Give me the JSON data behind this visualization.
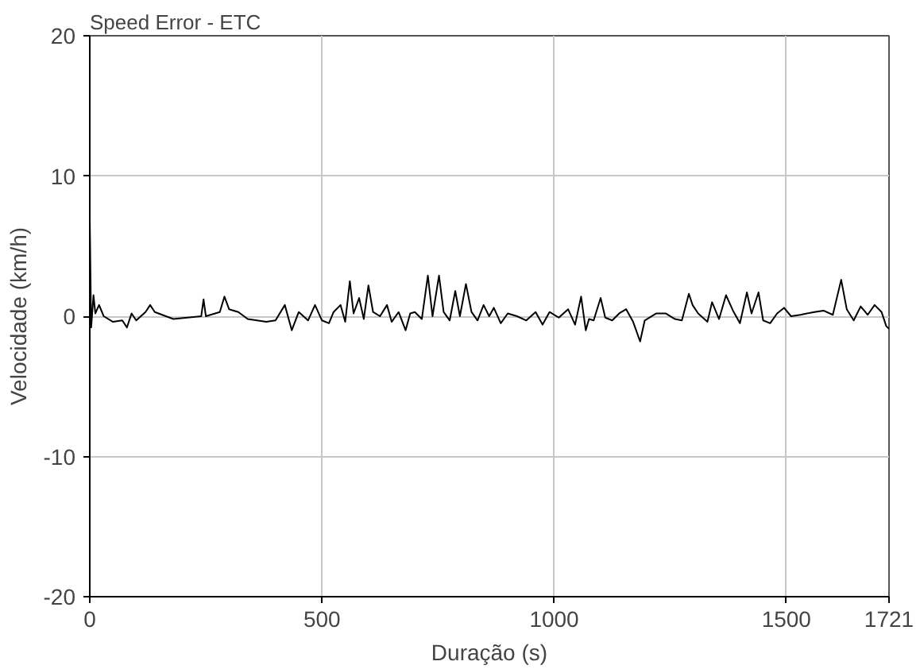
{
  "chart_data": {
    "type": "line",
    "title": "Speed Error - ETC",
    "xlabel": "Duração (s)",
    "ylabel": "Velocidade (km/h)",
    "xlim": [
      0,
      1721
    ],
    "xticks": [
      0,
      500,
      1000,
      1500,
      1721
    ],
    "ylim": [
      -20,
      20
    ],
    "yticks": [
      -20,
      -10,
      0,
      10,
      20
    ],
    "grid": true,
    "series": [
      {
        "color": "#000000",
        "x": [
          0,
          3,
          8,
          12,
          20,
          30,
          50,
          70,
          80,
          90,
          100,
          120,
          130,
          140,
          180,
          240,
          245,
          250,
          280,
          290,
          300,
          320,
          340,
          380,
          400,
          420,
          435,
          450,
          470,
          485,
          500,
          515,
          525,
          540,
          550,
          560,
          568,
          580,
          590,
          600,
          610,
          625,
          640,
          650,
          665,
          680,
          690,
          700,
          715,
          728,
          738,
          752,
          762,
          775,
          787,
          797,
          810,
          822,
          835,
          848,
          860,
          870,
          885,
          900,
          920,
          940,
          960,
          975,
          990,
          1010,
          1030,
          1045,
          1058,
          1068,
          1075,
          1085,
          1100,
          1110,
          1125,
          1140,
          1155,
          1170,
          1185,
          1195,
          1220,
          1240,
          1260,
          1275,
          1290,
          1298,
          1310,
          1330,
          1340,
          1355,
          1370,
          1385,
          1400,
          1415,
          1425,
          1440,
          1450,
          1465,
          1480,
          1495,
          1510,
          1530,
          1560,
          1580,
          1600,
          1618,
          1630,
          1645,
          1660,
          1675,
          1690,
          1705,
          1715,
          1721
        ],
        "values": [
          7,
          -0.8,
          1.5,
          0.2,
          0.8,
          0,
          -0.4,
          -0.3,
          -0.8,
          0.2,
          -0.3,
          0.3,
          0.8,
          0.3,
          -0.2,
          0,
          1.2,
          0,
          0.3,
          1.4,
          0.5,
          0.3,
          -0.2,
          -0.4,
          -0.3,
          0.8,
          -1.0,
          0.3,
          -0.3,
          0.8,
          -0.3,
          -0.5,
          0.3,
          0.8,
          -0.4,
          2.5,
          0.2,
          1.3,
          -0.2,
          2.2,
          0.3,
          0,
          0.8,
          -0.4,
          0.3,
          -1.0,
          0.2,
          0.3,
          -0.2,
          2.9,
          0,
          2.9,
          0.3,
          -0.3,
          1.8,
          0,
          2.3,
          0.3,
          -0.3,
          0.8,
          0.0,
          0.6,
          -0.5,
          0.2,
          0,
          -0.3,
          0.3,
          -0.6,
          0.3,
          -0.1,
          0.5,
          -0.6,
          1.4,
          -1.0,
          -0.2,
          -0.3,
          1.3,
          -0.1,
          -0.3,
          0.2,
          0.5,
          -0.4,
          -1.8,
          -0.3,
          0.2,
          0.2,
          -0.2,
          -0.3,
          1.6,
          0.8,
          0.2,
          -0.4,
          1.0,
          -0.2,
          1.5,
          0.4,
          -0.5,
          1.7,
          0.2,
          1.7,
          -0.3,
          -0.5,
          0.2,
          0.6,
          0,
          0.1,
          0.3,
          0.4,
          0.1,
          2.6,
          0.5,
          -0.3,
          0.7,
          0.1,
          0.8,
          0.3,
          -0.7,
          -0.9
        ]
      }
    ]
  }
}
